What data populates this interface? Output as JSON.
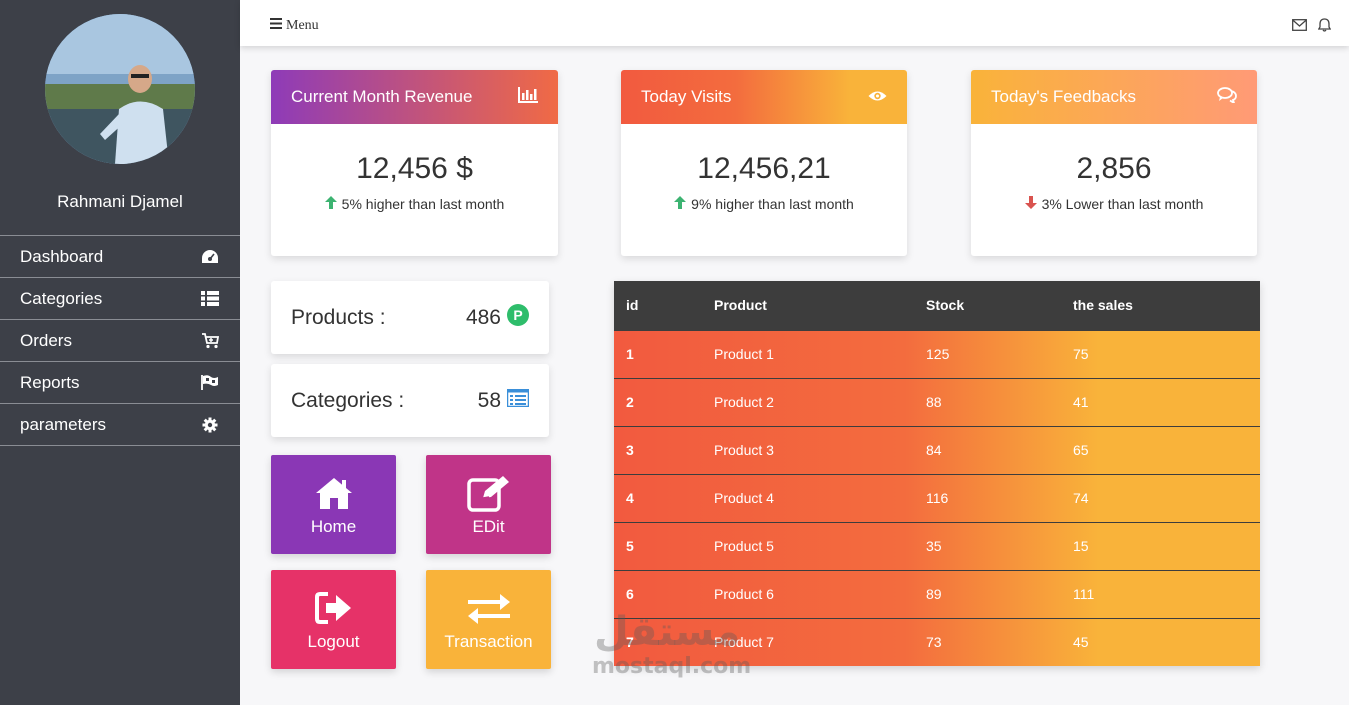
{
  "sidebar": {
    "user_name": "Rahmani Djamel",
    "items": [
      {
        "label": "Dashboard",
        "icon": "dashboard-gauge-icon"
      },
      {
        "label": "Categories",
        "icon": "list-icon"
      },
      {
        "label": "Orders",
        "icon": "cart-icon"
      },
      {
        "label": "Reports",
        "icon": "flag-icon"
      },
      {
        "label": "parameters",
        "icon": "gear-icon"
      }
    ]
  },
  "topbar": {
    "menu_label": "Menu",
    "icons": [
      "envelope-icon",
      "bell-icon"
    ]
  },
  "stats": [
    {
      "title": "Current Month Revenue",
      "value": "12,456 $",
      "change": "5% higher than last month",
      "trend": "up",
      "icon": "bar-chart-icon"
    },
    {
      "title": "Today Visits",
      "value": "12,456,21",
      "change": "9% higher than last month",
      "trend": "up",
      "icon": "eye-icon"
    },
    {
      "title": "Today's Feedbacks",
      "value": "2,856",
      "change": "3% Lower than last month",
      "trend": "down",
      "icon": "comments-icon"
    }
  ],
  "counts": {
    "products": {
      "label": "Products :",
      "value": "486"
    },
    "categories": {
      "label": "Categories :",
      "value": "58"
    }
  },
  "tiles": [
    {
      "label": "Home",
      "icon": "home-icon"
    },
    {
      "label": "EDit",
      "icon": "edit-icon"
    },
    {
      "label": "Logout",
      "icon": "logout-icon"
    },
    {
      "label": "Transaction",
      "icon": "exchange-icon"
    }
  ],
  "table": {
    "headers": [
      "id",
      "Product",
      "Stock",
      "the sales"
    ],
    "rows": [
      [
        "1",
        "Product 1",
        "125",
        "75"
      ],
      [
        "2",
        "Product 2",
        "88",
        "41"
      ],
      [
        "3",
        "Product 3",
        "84",
        "65"
      ],
      [
        "4",
        "Product 4",
        "116",
        "74"
      ],
      [
        "5",
        "Product 5",
        "35",
        "15"
      ],
      [
        "6",
        "Product 6",
        "89",
        "111"
      ],
      [
        "7",
        "Product 7",
        "73",
        "45"
      ]
    ]
  },
  "watermark": {
    "arabic": "مستقل",
    "latin": "mostaql.com"
  },
  "colors": {
    "sidebar_bg": "#3d4048",
    "revenue_gradient": [
      "#8e3bb8",
      "#f06a45"
    ],
    "visits_gradient": [
      "#f25a3f",
      "#f9b33a"
    ],
    "feedback_gradient": [
      "#f9b33a",
      "#ff9a76"
    ],
    "up_arrow": "#3cb371",
    "down_arrow": "#d9534f",
    "tile_home": "#8a37b5",
    "tile_edit": "#c03488",
    "tile_logout": "#e63268",
    "tile_transaction": "#f9b33a"
  }
}
